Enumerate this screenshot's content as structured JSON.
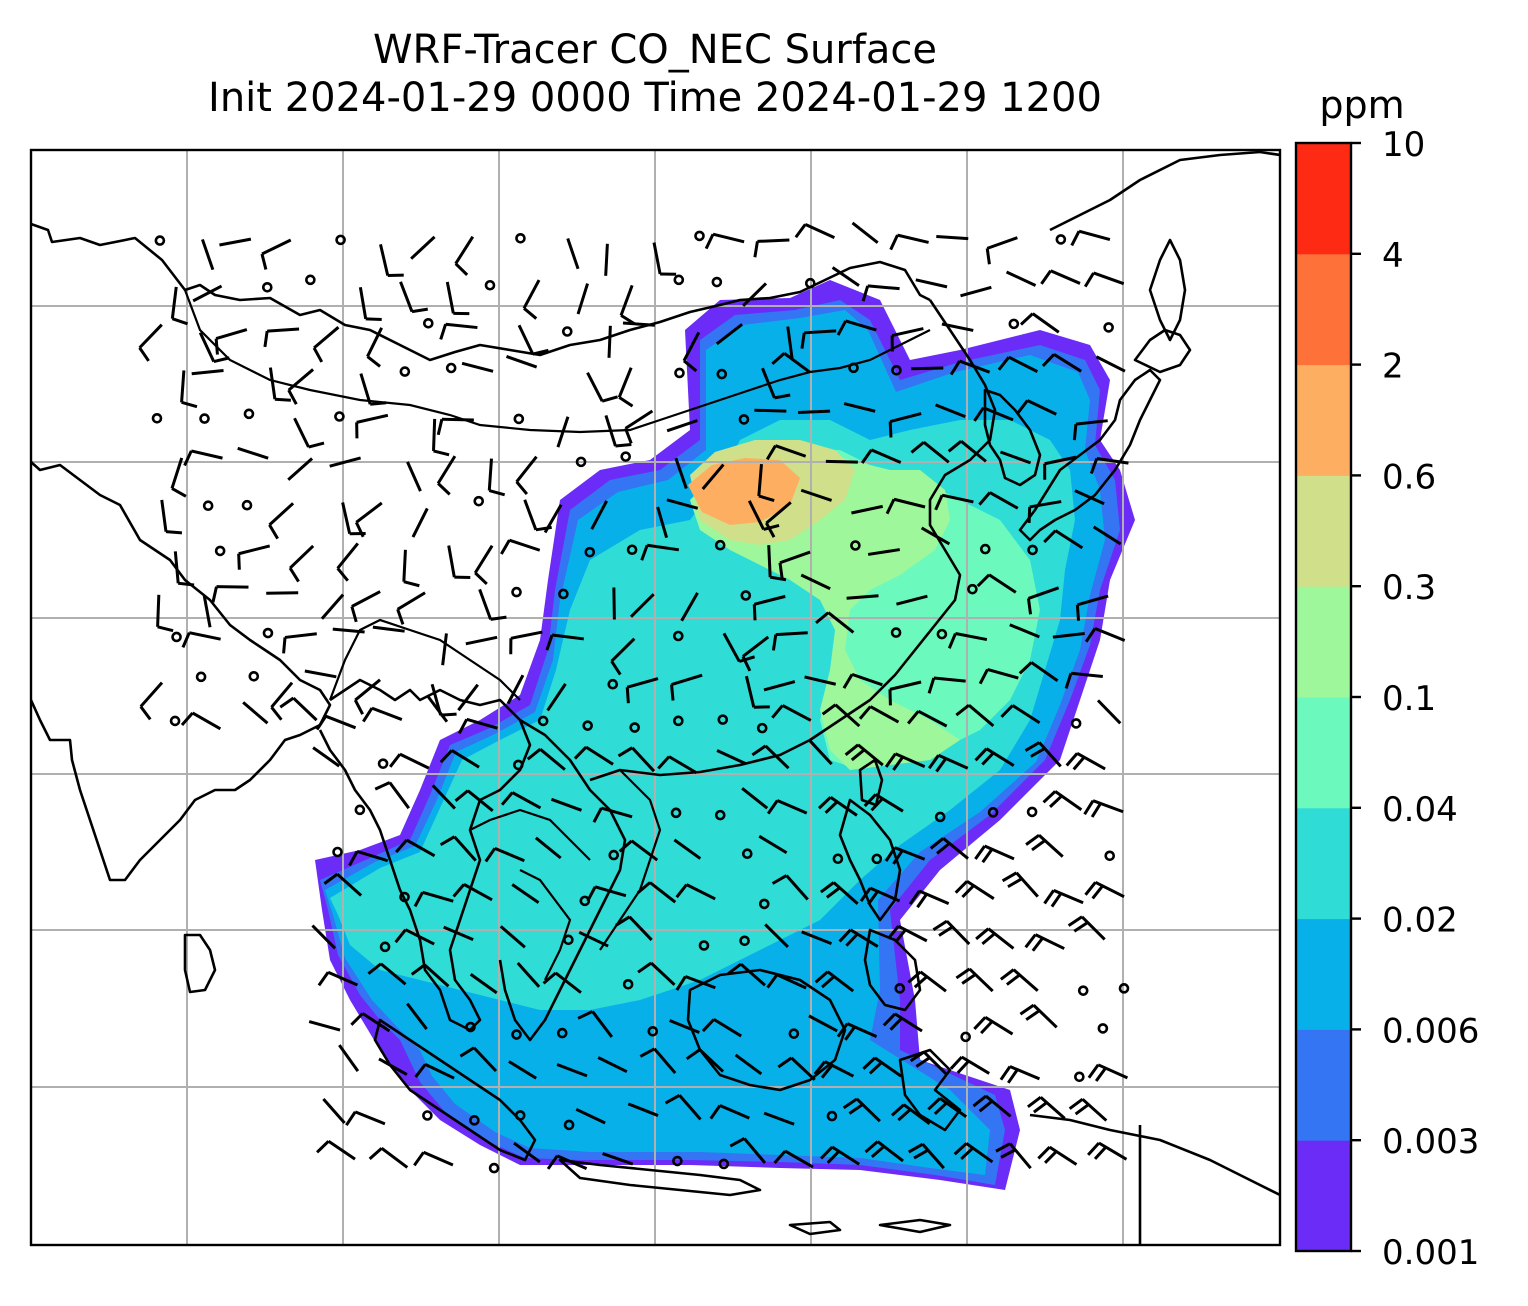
{
  "title": {
    "line1": "WRF-Tracer CO_NEC Surface",
    "line2": "Init 2024-01-29 0000 Time 2024-01-29 1200"
  },
  "colorbar": {
    "unit": "ppm",
    "levels": [
      "0.001",
      "0.003",
      "0.006",
      "0.02",
      "0.04",
      "0.1",
      "0.3",
      "0.6",
      "2",
      "4",
      "10"
    ],
    "colors": [
      "#6a2cf6",
      "#3375f2",
      "#08b0ea",
      "#2fdcd6",
      "#6cf9be",
      "#9ef79a",
      "#d0e08a",
      "#fdae61",
      "#fe7239",
      "#fe2a14"
    ]
  },
  "map": {
    "field": "CO_NEC surface concentration",
    "overlays": [
      "coastlines",
      "country borders",
      "lat-lon gridlines",
      "wind barbs"
    ]
  }
}
